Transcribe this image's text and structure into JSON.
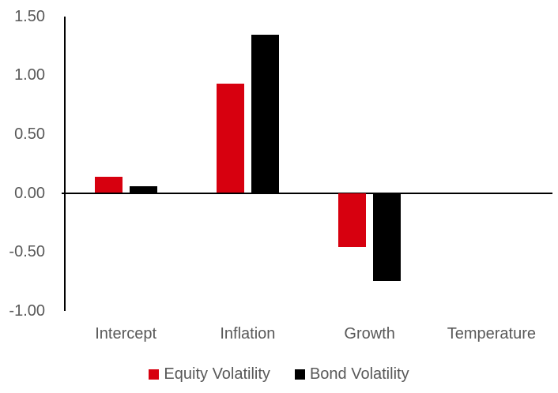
{
  "chart_data": {
    "type": "bar",
    "title": "",
    "xlabel": "",
    "ylabel": "",
    "categories": [
      "Intercept",
      "Inflation",
      "Growth",
      "Temperature"
    ],
    "series": [
      {
        "name": "Equity Volatility",
        "color": "#D7000F",
        "values": [
          0.14,
          0.93,
          -0.46,
          0.0
        ]
      },
      {
        "name": "Bond Volatility",
        "color": "#000000",
        "values": [
          0.06,
          1.34,
          -0.75,
          0.0
        ]
      }
    ],
    "ylim": [
      -1.0,
      1.5
    ],
    "yticks": [
      {
        "value": 1.5,
        "label": "1.50"
      },
      {
        "value": 1.0,
        "label": "1.00"
      },
      {
        "value": 0.5,
        "label": "0.50"
      },
      {
        "value": 0.0,
        "label": "0.00"
      },
      {
        "value": -0.5,
        "label": "-0.50"
      },
      {
        "value": -1.0,
        "label": "-1.00"
      }
    ],
    "grid": false,
    "legend_position": "bottom"
  },
  "colors": {
    "axis": "#000000",
    "tick_text": "#595959",
    "background": "#FFFFFF"
  }
}
